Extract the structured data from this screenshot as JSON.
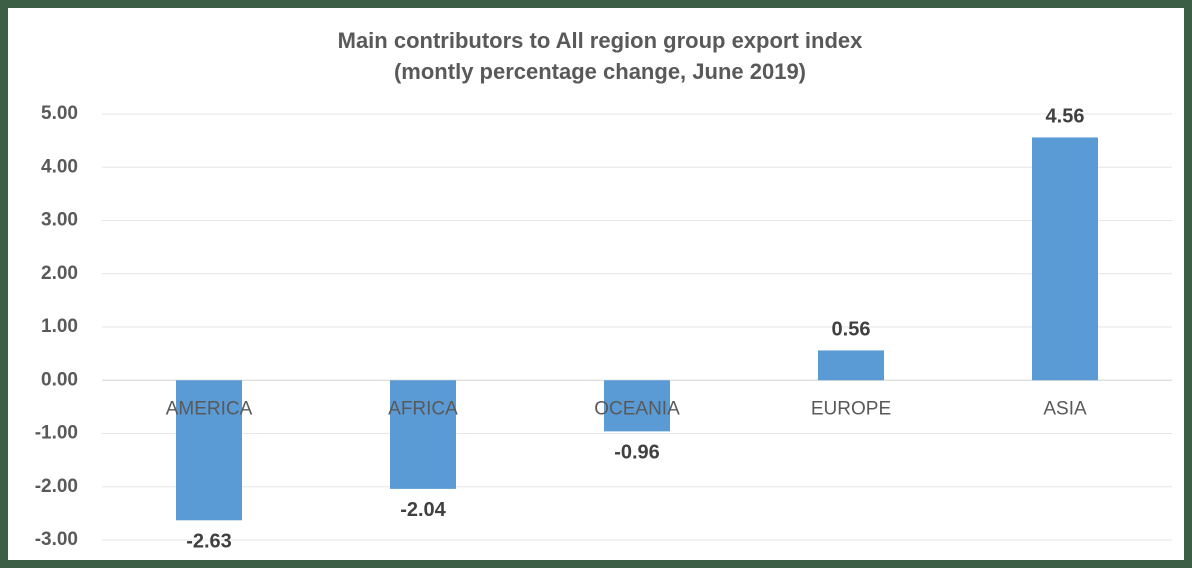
{
  "chart_data": {
    "type": "bar",
    "title": "Main contributors to All region group export index",
    "subtitle": "(montly percentage change, June 2019)",
    "categories": [
      "AMERICA",
      "AFRICA",
      "OCEANIA",
      "EUROPE",
      "ASIA"
    ],
    "values": [
      -2.63,
      -2.04,
      -0.96,
      0.56,
      4.56
    ],
    "color": "#5b9bd5",
    "ylim": [
      -3,
      5
    ],
    "yticks": [
      {
        "value": 5,
        "label": "5.00"
      },
      {
        "value": 4,
        "label": "4.00"
      },
      {
        "value": 3,
        "label": "3.00"
      },
      {
        "value": 2,
        "label": "2.00"
      },
      {
        "value": 1,
        "label": "1.00"
      },
      {
        "value": 0,
        "label": "0.00"
      },
      {
        "value": -1,
        "label": "-1.00"
      },
      {
        "value": -2,
        "label": "-2.00"
      },
      {
        "value": -3,
        "label": "-3.00"
      }
    ],
    "grid": true
  }
}
